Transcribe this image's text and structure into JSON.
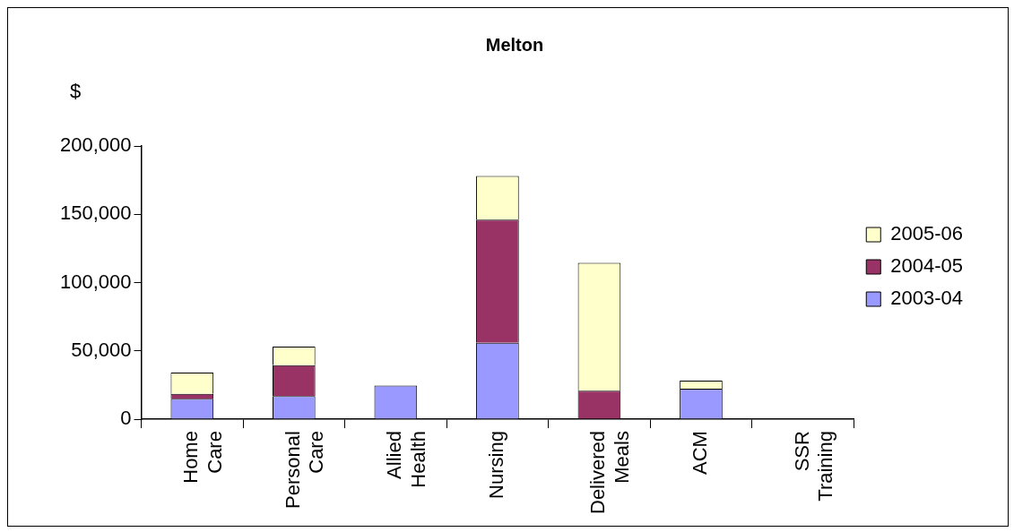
{
  "chart_data": {
    "type": "bar",
    "title": "Melton",
    "ylabel": "$",
    "stacked": true,
    "categories": [
      "Home Care",
      "Personal Care",
      "Allied Health",
      "Nursing",
      "Delivered Meals",
      "ACM",
      "SSR Training"
    ],
    "series": [
      {
        "name": "2003-04",
        "color": "#9999ff",
        "values": [
          15000,
          17000,
          24700,
          56000,
          0,
          22300,
          0
        ]
      },
      {
        "name": "2004-05",
        "color": "#993366",
        "values": [
          3500,
          22600,
          0,
          90000,
          20800,
          0,
          0
        ]
      },
      {
        "name": "2005-06",
        "color": "#ffffcc",
        "values": [
          15600,
          13600,
          0,
          32000,
          93700,
          6000,
          0
        ]
      }
    ],
    "ylim": [
      0,
      200000
    ],
    "yticks": [
      {
        "value": 0,
        "label": "0"
      },
      {
        "value": 50000,
        "label": "50,000"
      },
      {
        "value": 100000,
        "label": "100,000"
      },
      {
        "value": 150000,
        "label": "150,000"
      },
      {
        "value": 200000,
        "label": "200,000"
      }
    ],
    "grid": false,
    "legend": "right"
  }
}
